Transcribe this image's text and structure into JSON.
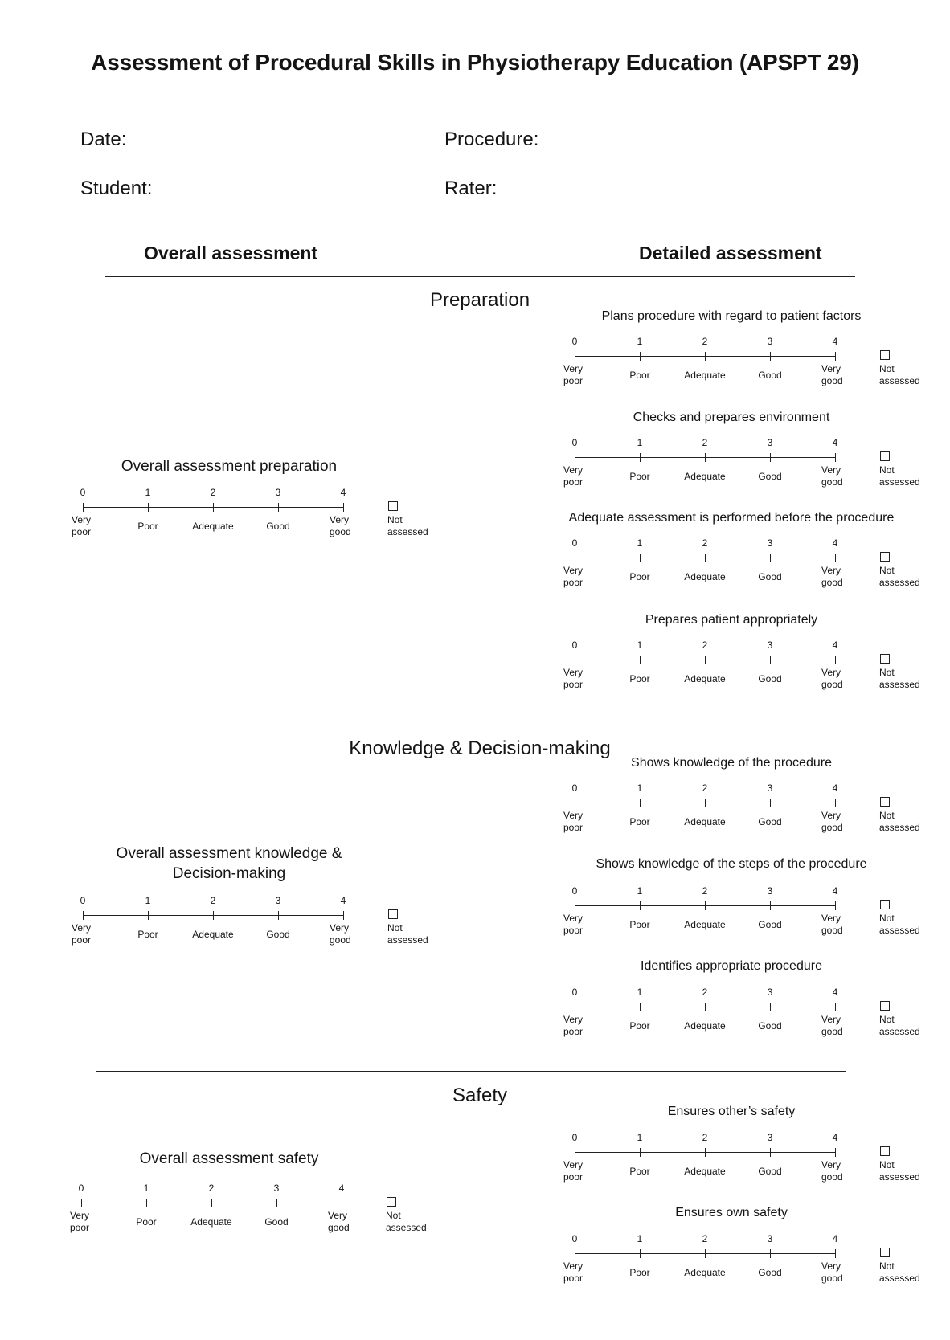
{
  "title": "Assessment of Procedural Skills in Physiotherapy Education (APSPT 29)",
  "fields": {
    "date": "Date:",
    "procedure": "Procedure:",
    "student": "Student:",
    "rater": "Rater:"
  },
  "columns": {
    "overall": "Overall assessment",
    "detailed": "Detailed assessment"
  },
  "scale": {
    "numbers": [
      "0",
      "1",
      "2",
      "3",
      "4"
    ],
    "very_poor": [
      "Very",
      "poor"
    ],
    "poor": "Poor",
    "adequate": "Adequate",
    "good": "Good",
    "very_good": [
      "Very",
      "good"
    ],
    "not_assessed": [
      "Not",
      "assessed"
    ]
  },
  "sections": [
    {
      "title": "Preparation",
      "overall": [
        "Overall assessment preparation"
      ],
      "items": [
        "Plans procedure with regard to patient factors",
        "Checks and prepares environment",
        "Adequate assessment is performed before the procedure",
        "Prepares patient appropriately"
      ]
    },
    {
      "title": "Knowledge & Decision-making",
      "overall": [
        "Overall assessment knowledge  &",
        "Decision-making"
      ],
      "items": [
        "Shows knowledge of the procedure",
        "Shows knowledge of the steps of the procedure",
        "Identifies appropriate procedure"
      ]
    },
    {
      "title": "Safety",
      "overall": [
        "Overall assessment safety"
      ],
      "items": [
        "Ensures other’s safety",
        "Ensures own safety"
      ]
    }
  ]
}
